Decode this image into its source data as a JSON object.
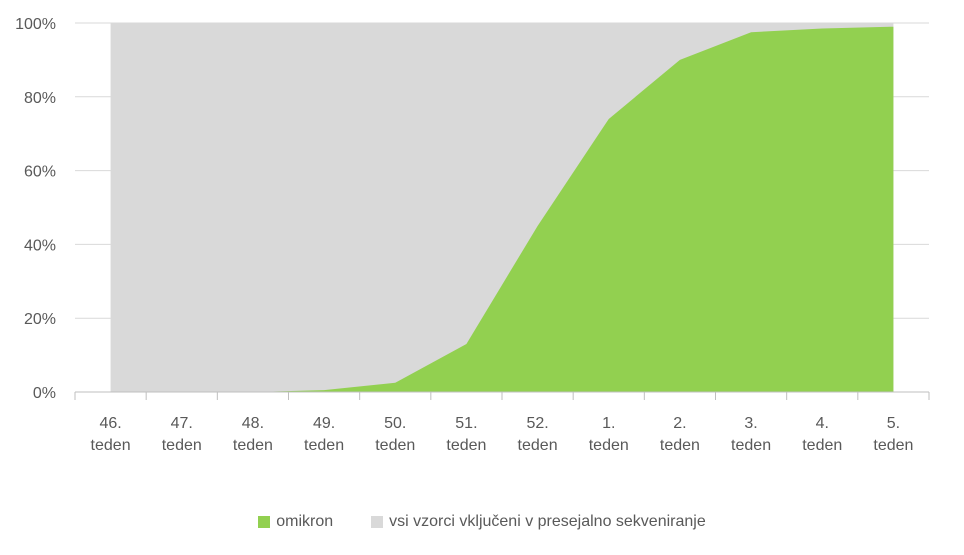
{
  "chart_data": {
    "type": "area",
    "stacked_percent": true,
    "categories": [
      [
        "46.",
        "teden"
      ],
      [
        "47.",
        "teden"
      ],
      [
        "48.",
        "teden"
      ],
      [
        "49.",
        "teden"
      ],
      [
        "50.",
        "teden"
      ],
      [
        "51.",
        "teden"
      ],
      [
        "52.",
        "teden"
      ],
      [
        "1.",
        "teden"
      ],
      [
        "2.",
        "teden"
      ],
      [
        "3.",
        "teden"
      ],
      [
        "4.",
        "teden"
      ],
      [
        "5.",
        "teden"
      ]
    ],
    "series": [
      {
        "name": "omikron",
        "color": "#92d050",
        "values": [
          0,
          0,
          0,
          0.5,
          2.5,
          13,
          45,
          74,
          90,
          97.5,
          98.5,
          99
        ]
      },
      {
        "name": "vsi vzorci vključeni v presejalno sekveniranje",
        "color": "#d9d9d9",
        "values": [
          100,
          100,
          100,
          100,
          100,
          100,
          100,
          100,
          100,
          100,
          100,
          100
        ]
      }
    ],
    "yticks": [
      "0%",
      "20%",
      "40%",
      "60%",
      "80%",
      "100%"
    ],
    "ylim": [
      0,
      100
    ],
    "title": "",
    "xlabel": "",
    "ylabel": "",
    "grid": "horizontal",
    "legend_position": "bottom"
  }
}
